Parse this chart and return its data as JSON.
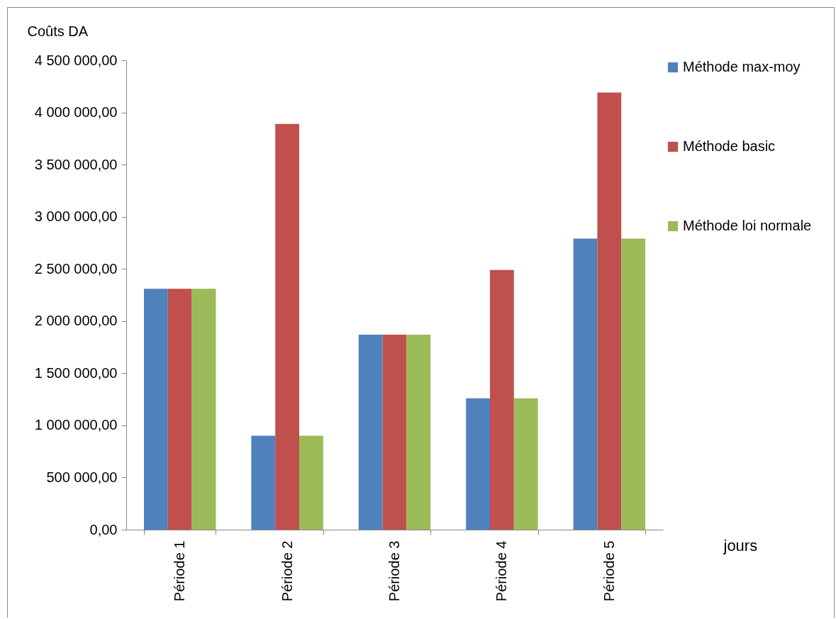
{
  "chart_data": {
    "type": "bar",
    "xlabel": "jours",
    "ylabel": "Coûts DA",
    "categories": [
      "Période 1",
      "Période 2",
      "Période 3",
      "Période 4",
      "Période 5"
    ],
    "series": [
      {
        "name": "Méthode max-moy",
        "color": "#4f81bd",
        "values": [
          2310000,
          900000,
          1870000,
          1260000,
          2790000
        ]
      },
      {
        "name": "Méthode basic",
        "color": "#c0504d",
        "values": [
          2310000,
          3890000,
          1870000,
          2490000,
          4190000
        ]
      },
      {
        "name": "Méthode loi normale",
        "color": "#9bbb59",
        "values": [
          2310000,
          900000,
          1870000,
          1260000,
          2790000
        ]
      }
    ],
    "ylim": [
      0,
      4500000
    ],
    "yticks": [
      {
        "value": 0,
        "label": "0,00"
      },
      {
        "value": 500000,
        "label": "500 000,00"
      },
      {
        "value": 1000000,
        "label": "1 000 000,00"
      },
      {
        "value": 1500000,
        "label": "1 500 000,00"
      },
      {
        "value": 2000000,
        "label": "2 000 000,00"
      },
      {
        "value": 2500000,
        "label": "2 500 000,00"
      },
      {
        "value": 3000000,
        "label": "3 000 000,00"
      },
      {
        "value": 3500000,
        "label": "3 500 000,00"
      },
      {
        "value": 4000000,
        "label": "4 000 000,00"
      },
      {
        "value": 4500000,
        "label": "4 500 000,00"
      }
    ],
    "grid": false,
    "legend": "right"
  }
}
